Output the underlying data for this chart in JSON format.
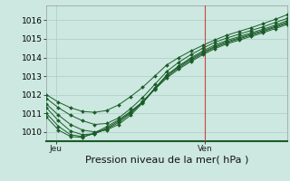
{
  "background_color": "#cce8e0",
  "grid_color": "#aaccc4",
  "line_color": "#1a5c28",
  "marker_color": "#1a5c28",
  "xlabel": "Pression niveau de la mer( hPa )",
  "xlabel_fontsize": 8,
  "tick_label_fontsize": 6.5,
  "day_labels": [
    "Jeu",
    "Ven"
  ],
  "day_positions": [
    0.04,
    0.66
  ],
  "vline_x": 0.66,
  "ylim": [
    1009.5,
    1016.8
  ],
  "yticks": [
    1010,
    1011,
    1012,
    1013,
    1014,
    1015,
    1016
  ],
  "xlim": [
    0.0,
    1.0
  ],
  "series": [
    [
      1012.0,
      1011.6,
      1011.3,
      1011.1,
      1011.05,
      1011.15,
      1011.45,
      1011.9,
      1012.4,
      1013.0,
      1013.6,
      1014.0,
      1014.35,
      1014.65,
      1014.95,
      1015.2,
      1015.4,
      1015.6,
      1015.82,
      1016.05,
      1016.3
    ],
    [
      1011.8,
      1011.3,
      1010.9,
      1010.6,
      1010.4,
      1010.45,
      1010.75,
      1011.25,
      1011.85,
      1012.55,
      1013.25,
      1013.75,
      1014.15,
      1014.5,
      1014.82,
      1015.05,
      1015.25,
      1015.45,
      1015.65,
      1015.88,
      1016.1
    ],
    [
      1011.5,
      1010.9,
      1010.4,
      1010.1,
      1010.0,
      1010.1,
      1010.4,
      1010.9,
      1011.55,
      1012.3,
      1013.05,
      1013.55,
      1013.98,
      1014.35,
      1014.68,
      1014.92,
      1015.12,
      1015.32,
      1015.52,
      1015.74,
      1015.98
    ],
    [
      1011.3,
      1010.6,
      1010.05,
      1009.85,
      1009.9,
      1010.15,
      1010.5,
      1011.0,
      1011.6,
      1012.35,
      1013.05,
      1013.52,
      1013.92,
      1014.28,
      1014.6,
      1014.85,
      1015.05,
      1015.25,
      1015.45,
      1015.67,
      1015.9
    ],
    [
      1011.0,
      1010.3,
      1009.85,
      1009.75,
      1009.9,
      1010.2,
      1010.58,
      1011.05,
      1011.62,
      1012.32,
      1012.98,
      1013.45,
      1013.85,
      1014.22,
      1014.55,
      1014.8,
      1015.0,
      1015.2,
      1015.4,
      1015.62,
      1015.85
    ],
    [
      1010.8,
      1010.1,
      1009.75,
      1009.7,
      1009.95,
      1010.28,
      1010.65,
      1011.1,
      1011.62,
      1012.28,
      1012.9,
      1013.38,
      1013.78,
      1014.15,
      1014.48,
      1014.73,
      1014.93,
      1015.13,
      1015.33,
      1015.55,
      1015.78
    ]
  ]
}
